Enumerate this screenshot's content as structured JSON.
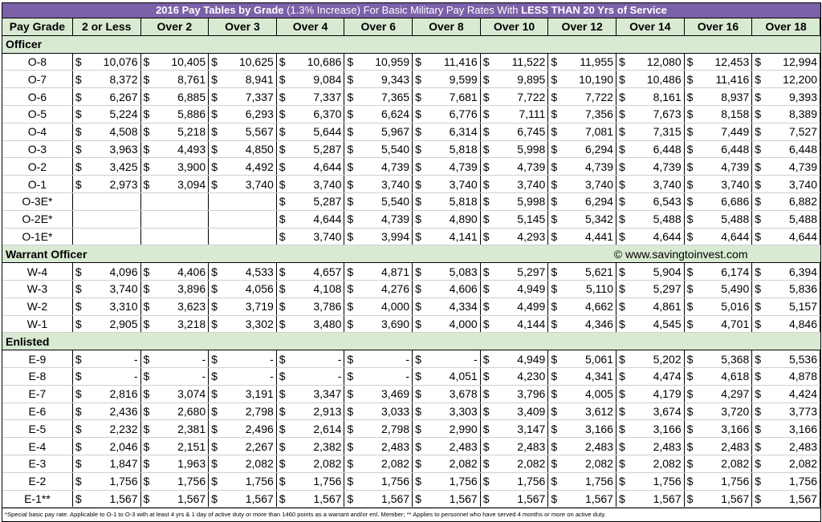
{
  "title": {
    "part1": "2016 Pay Tables by Grade",
    "part2": "(1.3% Increase)",
    "part3": "For Basic Military Pay Rates With",
    "part4": "LESS THAN 20 Yrs of Service"
  },
  "headers": [
    "Pay Grade",
    "2 or Less",
    "Over 2",
    "Over 3",
    "Over 4",
    "Over 6",
    "Over 8",
    "Over 10",
    "Over 12",
    "Over 14",
    "Over 16",
    "Over 18"
  ],
  "currency": "$",
  "credit": "© www.savingtoinvest.com",
  "sections": [
    {
      "label": "Officer",
      "rows": [
        {
          "grade": "O-8",
          "values": [
            "10,076",
            "10,405",
            "10,625",
            "10,686",
            "10,959",
            "11,416",
            "11,522",
            "11,955",
            "12,080",
            "12,453",
            "12,994"
          ]
        },
        {
          "grade": "O-7",
          "values": [
            "8,372",
            "8,761",
            "8,941",
            "9,084",
            "9,343",
            "9,599",
            "9,895",
            "10,190",
            "10,486",
            "11,416",
            "12,200"
          ]
        },
        {
          "grade": "O-6",
          "values": [
            "6,267",
            "6,885",
            "7,337",
            "7,337",
            "7,365",
            "7,681",
            "7,722",
            "7,722",
            "8,161",
            "8,937",
            "9,393"
          ]
        },
        {
          "grade": "O-5",
          "values": [
            "5,224",
            "5,886",
            "6,293",
            "6,370",
            "6,624",
            "6,776",
            "7,111",
            "7,356",
            "7,673",
            "8,158",
            "8,389"
          ]
        },
        {
          "grade": "O-4",
          "values": [
            "4,508",
            "5,218",
            "5,567",
            "5,644",
            "5,967",
            "6,314",
            "6,745",
            "7,081",
            "7,315",
            "7,449",
            "7,527"
          ]
        },
        {
          "grade": "O-3",
          "values": [
            "3,963",
            "4,493",
            "4,850",
            "5,287",
            "5,540",
            "5,818",
            "5,998",
            "6,294",
            "6,448",
            "6,448",
            "6,448"
          ]
        },
        {
          "grade": "O-2",
          "values": [
            "3,425",
            "3,900",
            "4,492",
            "4,644",
            "4,739",
            "4,739",
            "4,739",
            "4,739",
            "4,739",
            "4,739",
            "4,739"
          ]
        },
        {
          "grade": "O-1",
          "values": [
            "2,973",
            "3,094",
            "3,740",
            "3,740",
            "3,740",
            "3,740",
            "3,740",
            "3,740",
            "3,740",
            "3,740",
            "3,740"
          ]
        },
        {
          "grade": "O-3E*",
          "values": [
            "",
            "",
            "",
            "5,287",
            "5,540",
            "5,818",
            "5,998",
            "6,294",
            "6,543",
            "6,686",
            "6,882"
          ]
        },
        {
          "grade": "O-2E*",
          "values": [
            "",
            "",
            "",
            "4,644",
            "4,739",
            "4,890",
            "5,145",
            "5,342",
            "5,488",
            "5,488",
            "5,488"
          ]
        },
        {
          "grade": "O-1E*",
          "values": [
            "",
            "",
            "",
            "3,740",
            "3,994",
            "4,141",
            "4,293",
            "4,441",
            "4,644",
            "4,644",
            "4,644"
          ]
        }
      ]
    },
    {
      "label": "Warrant Officer",
      "credit": true,
      "rows": [
        {
          "grade": "W-4",
          "values": [
            "4,096",
            "4,406",
            "4,533",
            "4,657",
            "4,871",
            "5,083",
            "5,297",
            "5,621",
            "5,904",
            "6,174",
            "6,394"
          ]
        },
        {
          "grade": "W-3",
          "values": [
            "3,740",
            "3,896",
            "4,056",
            "4,108",
            "4,276",
            "4,606",
            "4,949",
            "5,110",
            "5,297",
            "5,490",
            "5,836"
          ]
        },
        {
          "grade": "W-2",
          "values": [
            "3,310",
            "3,623",
            "3,719",
            "3,786",
            "4,000",
            "4,334",
            "4,499",
            "4,662",
            "4,861",
            "5,016",
            "5,157"
          ]
        },
        {
          "grade": "W-1",
          "values": [
            "2,905",
            "3,218",
            "3,302",
            "3,480",
            "3,690",
            "4,000",
            "4,144",
            "4,346",
            "4,545",
            "4,701",
            "4,846"
          ]
        }
      ]
    },
    {
      "label": "Enlisted",
      "rows": [
        {
          "grade": "E-9",
          "values": [
            "-",
            "-",
            "-",
            "-",
            "-",
            "-",
            "4,949",
            "5,061",
            "5,202",
            "5,368",
            "5,536"
          ]
        },
        {
          "grade": "E-8",
          "values": [
            "-",
            "-",
            "-",
            "-",
            "-",
            "4,051",
            "4,230",
            "4,341",
            "4,474",
            "4,618",
            "4,878"
          ]
        },
        {
          "grade": "E-7",
          "values": [
            "2,816",
            "3,074",
            "3,191",
            "3,347",
            "3,469",
            "3,678",
            "3,796",
            "4,005",
            "4,179",
            "4,297",
            "4,424"
          ]
        },
        {
          "grade": "E-6",
          "values": [
            "2,436",
            "2,680",
            "2,798",
            "2,913",
            "3,033",
            "3,303",
            "3,409",
            "3,612",
            "3,674",
            "3,720",
            "3,773"
          ]
        },
        {
          "grade": "E-5",
          "values": [
            "2,232",
            "2,381",
            "2,496",
            "2,614",
            "2,798",
            "2,990",
            "3,147",
            "3,166",
            "3,166",
            "3,166",
            "3,166"
          ]
        },
        {
          "grade": "E-4",
          "values": [
            "2,046",
            "2,151",
            "2,267",
            "2,382",
            "2,483",
            "2,483",
            "2,483",
            "2,483",
            "2,483",
            "2,483",
            "2,483"
          ]
        },
        {
          "grade": "E-3",
          "values": [
            "1,847",
            "1,963",
            "2,082",
            "2,082",
            "2,082",
            "2,082",
            "2,082",
            "2,082",
            "2,082",
            "2,082",
            "2,082"
          ]
        },
        {
          "grade": "E-2",
          "values": [
            "1,756",
            "1,756",
            "1,756",
            "1,756",
            "1,756",
            "1,756",
            "1,756",
            "1,756",
            "1,756",
            "1,756",
            "1,756"
          ]
        },
        {
          "grade": "E-1**",
          "values": [
            "1,567",
            "1,567",
            "1,567",
            "1,567",
            "1,567",
            "1,567",
            "1,567",
            "1,567",
            "1,567",
            "1,567",
            "1,567"
          ]
        }
      ]
    }
  ],
  "footnote": "*Special basic pay rate. Applicable to O-1 to O-3 with at least 4 yrs & 1 day of active duty or more than 1460 points as a warrant and/or enl. Member; ** Applies to personnel who have served 4 months or more on active duty.",
  "colors": {
    "title_bg": "#7b61a8",
    "header_bg": "#d9ead3"
  }
}
